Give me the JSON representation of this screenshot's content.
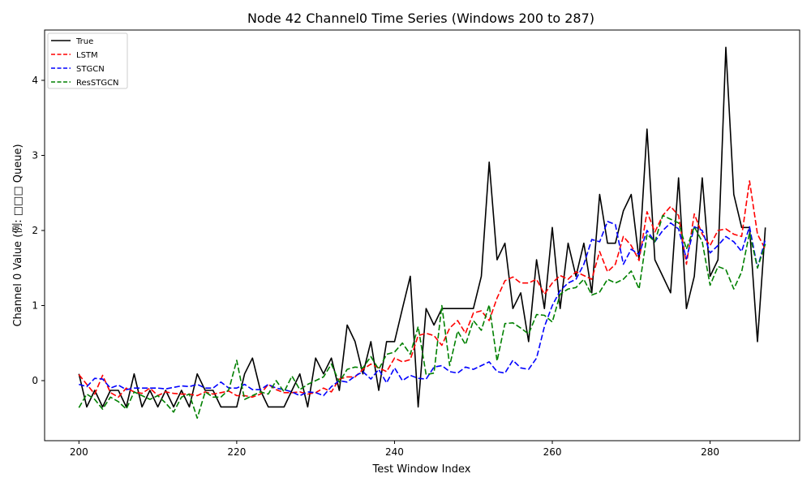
{
  "chart_data": {
    "type": "line",
    "title": "Node 42 Channel0 Time Series (Windows 200 to 287)",
    "xlabel": "Test Window Index",
    "ylabel": "Channel 0 Value (例: □□□ Queue)",
    "xlim": [
      195.65,
      291.35
    ],
    "ylim": [
      -0.8,
      4.67
    ],
    "xticks": [
      200,
      220,
      240,
      260,
      280
    ],
    "yticks": [
      0,
      1,
      2,
      3,
      4
    ],
    "grid": false,
    "legend_position": "upper-left",
    "x": [
      200,
      201,
      202,
      203,
      204,
      205,
      206,
      207,
      208,
      209,
      210,
      211,
      212,
      213,
      214,
      215,
      216,
      217,
      218,
      219,
      220,
      221,
      222,
      223,
      224,
      225,
      226,
      227,
      228,
      229,
      230,
      231,
      232,
      233,
      234,
      235,
      236,
      237,
      238,
      239,
      240,
      241,
      242,
      243,
      244,
      245,
      246,
      247,
      248,
      249,
      250,
      251,
      252,
      253,
      254,
      255,
      256,
      257,
      258,
      259,
      260,
      261,
      262,
      263,
      264,
      265,
      266,
      267,
      268,
      269,
      270,
      271,
      272,
      273,
      274,
      275,
      276,
      277,
      278,
      279,
      280,
      281,
      282,
      283,
      284,
      285,
      286,
      287
    ],
    "series": [
      {
        "name": "True",
        "color": "#000000",
        "dash": "solid",
        "values": [
          0.09,
          -0.35,
          -0.13,
          -0.35,
          -0.13,
          -0.13,
          -0.35,
          0.09,
          -0.35,
          -0.13,
          -0.35,
          -0.13,
          -0.35,
          -0.13,
          -0.35,
          0.09,
          -0.13,
          -0.13,
          -0.35,
          -0.35,
          -0.35,
          0.09,
          0.3,
          -0.13,
          -0.35,
          -0.35,
          -0.35,
          -0.13,
          0.09,
          -0.35,
          0.3,
          0.09,
          0.3,
          -0.13,
          0.74,
          0.52,
          0.09,
          0.52,
          -0.13,
          0.52,
          0.52,
          0.96,
          1.39,
          -0.35,
          0.96,
          0.74,
          0.96,
          0.96,
          0.96,
          0.96,
          0.96,
          1.39,
          2.91,
          1.61,
          1.83,
          0.96,
          1.17,
          0.52,
          1.61,
          0.96,
          2.04,
          0.96,
          1.83,
          1.39,
          1.83,
          1.17,
          2.48,
          1.83,
          1.83,
          2.26,
          2.48,
          1.61,
          3.35,
          1.61,
          1.39,
          1.17,
          2.7,
          0.96,
          1.39,
          2.7,
          1.39,
          1.61,
          4.44,
          2.48,
          2.04,
          2.04,
          0.52,
          2.04
        ]
      },
      {
        "name": "LSTM",
        "color": "#ff0000",
        "dash": "dashed",
        "values": [
          0.08,
          -0.05,
          -0.18,
          0.07,
          -0.16,
          -0.22,
          -0.1,
          -0.15,
          -0.17,
          -0.1,
          -0.2,
          -0.15,
          -0.17,
          -0.18,
          -0.18,
          -0.2,
          -0.15,
          -0.18,
          -0.16,
          -0.14,
          -0.2,
          -0.2,
          -0.22,
          -0.18,
          -0.05,
          -0.12,
          -0.16,
          -0.16,
          -0.15,
          -0.18,
          -0.16,
          -0.1,
          -0.15,
          0.02,
          0.05,
          0.05,
          0.15,
          0.22,
          0.17,
          0.12,
          0.3,
          0.25,
          0.28,
          0.6,
          0.63,
          0.6,
          0.47,
          0.7,
          0.8,
          0.63,
          0.9,
          0.93,
          0.8,
          1.1,
          1.33,
          1.38,
          1.3,
          1.3,
          1.35,
          1.15,
          1.3,
          1.4,
          1.35,
          1.45,
          1.4,
          1.35,
          1.72,
          1.45,
          1.55,
          1.92,
          1.8,
          1.6,
          2.25,
          1.98,
          2.2,
          2.32,
          2.2,
          1.55,
          2.22,
          1.95,
          1.8,
          2.0,
          2.02,
          1.95,
          1.92,
          2.66,
          1.95,
          1.75
        ]
      },
      {
        "name": "STGCN",
        "color": "#0000ff",
        "dash": "dashed",
        "values": [
          -0.05,
          -0.08,
          0.03,
          0.02,
          -0.1,
          -0.06,
          -0.12,
          -0.1,
          -0.1,
          -0.1,
          -0.1,
          -0.11,
          -0.09,
          -0.07,
          -0.08,
          -0.05,
          -0.1,
          -0.1,
          -0.02,
          -0.1,
          -0.1,
          -0.05,
          -0.12,
          -0.12,
          -0.05,
          -0.1,
          -0.12,
          -0.15,
          -0.2,
          -0.15,
          -0.16,
          -0.2,
          -0.08,
          0.0,
          -0.02,
          0.06,
          0.12,
          0.02,
          0.15,
          -0.03,
          0.17,
          0.0,
          0.07,
          0.03,
          0.02,
          0.18,
          0.2,
          0.12,
          0.1,
          0.18,
          0.15,
          0.2,
          0.25,
          0.12,
          0.1,
          0.27,
          0.17,
          0.15,
          0.3,
          0.72,
          1.0,
          1.2,
          1.3,
          1.35,
          1.55,
          1.88,
          1.85,
          2.12,
          2.08,
          1.55,
          1.75,
          1.68,
          2.0,
          1.85,
          2.0,
          2.1,
          2.02,
          1.62,
          2.05,
          2.0,
          1.7,
          1.8,
          1.92,
          1.85,
          1.72,
          2.05,
          1.5,
          1.88
        ]
      },
      {
        "name": "ResSTGCN",
        "color": "#008000",
        "dash": "dashed",
        "values": [
          -0.36,
          -0.18,
          -0.25,
          -0.38,
          -0.22,
          -0.28,
          -0.38,
          -0.15,
          -0.2,
          -0.25,
          -0.2,
          -0.3,
          -0.42,
          -0.22,
          -0.18,
          -0.5,
          -0.15,
          -0.22,
          -0.22,
          -0.12,
          0.27,
          -0.25,
          -0.2,
          -0.15,
          -0.18,
          0.0,
          -0.15,
          0.06,
          -0.12,
          -0.05,
          0.0,
          0.05,
          0.22,
          -0.02,
          0.15,
          0.18,
          0.17,
          0.32,
          0.15,
          0.35,
          0.38,
          0.5,
          0.35,
          0.72,
          0.08,
          0.1,
          1.0,
          0.2,
          0.66,
          0.48,
          0.8,
          0.67,
          1.01,
          0.26,
          0.76,
          0.77,
          0.7,
          0.62,
          0.88,
          0.87,
          0.78,
          1.15,
          1.22,
          1.24,
          1.35,
          1.14,
          1.18,
          1.35,
          1.3,
          1.35,
          1.46,
          1.22,
          1.95,
          1.85,
          2.2,
          2.15,
          2.1,
          1.75,
          2.05,
          1.85,
          1.27,
          1.52,
          1.48,
          1.22,
          1.45,
          1.97,
          1.5,
          1.82
        ]
      }
    ]
  }
}
